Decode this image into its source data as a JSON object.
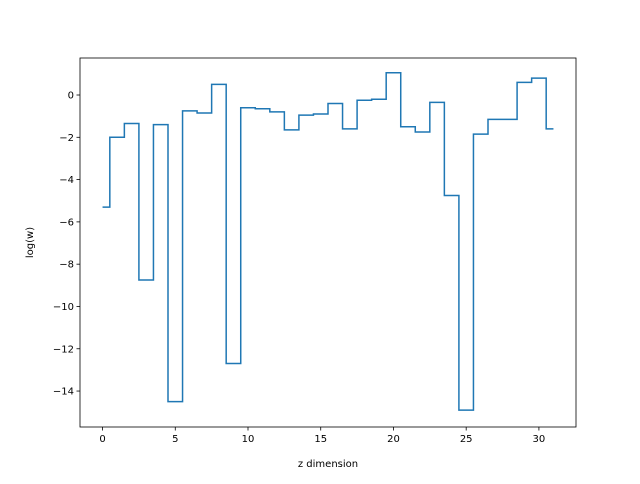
{
  "chart_data": {
    "type": "line",
    "style": "step-mid",
    "xlabel": "z dimension",
    "ylabel": "log(w)",
    "xlim": [
      -1.55,
      32.55
    ],
    "ylim": [
      -15.7,
      1.75
    ],
    "xticks": [
      0,
      5,
      10,
      15,
      20,
      25,
      30
    ],
    "xtick_labels": [
      "0",
      "5",
      "10",
      "15",
      "20",
      "25",
      "30"
    ],
    "yticks": [
      0,
      -2,
      -4,
      -6,
      -8,
      -10,
      -12,
      -14
    ],
    "ytick_labels": [
      "0",
      "−2",
      "−4",
      "−6",
      "−8",
      "−10",
      "−12",
      "−14"
    ],
    "grid": false,
    "series": [
      {
        "color": "#1f77b4",
        "x": [
          0,
          1,
          2,
          3,
          4,
          5,
          6,
          7,
          8,
          9,
          10,
          11,
          12,
          13,
          14,
          15,
          16,
          17,
          18,
          19,
          20,
          21,
          22,
          23,
          24,
          25,
          26,
          27,
          28,
          29,
          30,
          31
        ],
        "y": [
          -5.3,
          -2.0,
          -1.35,
          -8.75,
          -1.4,
          -14.5,
          -0.75,
          -0.85,
          0.5,
          -12.7,
          -0.6,
          -0.65,
          -0.8,
          -1.65,
          -0.95,
          -0.9,
          -0.4,
          -1.6,
          -0.25,
          -0.2,
          1.05,
          -1.5,
          -1.75,
          -0.35,
          -4.75,
          -14.9,
          -1.85,
          -1.15,
          -1.15,
          0.6,
          0.8,
          -1.6
        ]
      }
    ]
  }
}
